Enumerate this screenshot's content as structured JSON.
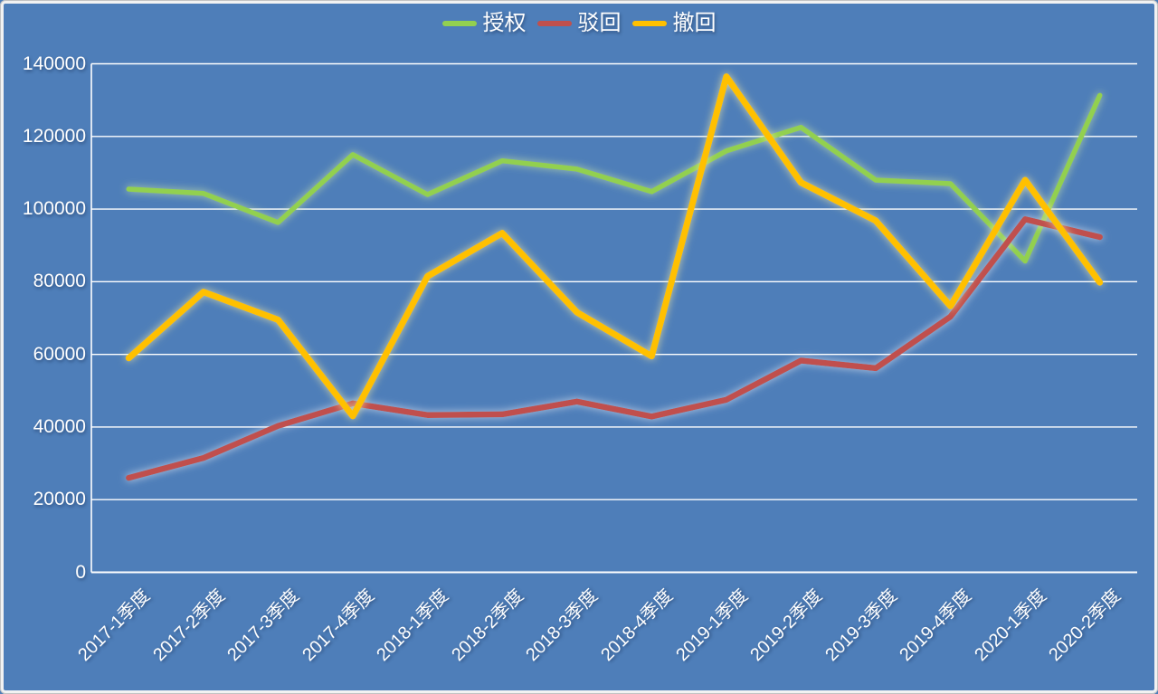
{
  "frame": {
    "background": "#4E7EB9",
    "inner_border": "#F2F2F2",
    "outer_border": "#C2C2C2"
  },
  "chart_data": {
    "type": "line",
    "title": "",
    "categories": [
      "2017-1季度",
      "2017-2季度",
      "2017-3季度",
      "2017-4季度",
      "2018-1季度",
      "2018-2季度",
      "2018-3季度",
      "2018-4季度",
      "2019-1季度",
      "2019-2季度",
      "2019-3季度",
      "2019-4季度",
      "2020-1季度",
      "2020-2季度"
    ],
    "series": [
      {
        "key": "granted",
        "name": "授权",
        "color": "#92D050",
        "glow_color": "#CDE8A6",
        "values": [
          105500,
          104300,
          96300,
          115000,
          104000,
          113300,
          111000,
          104800,
          116000,
          122500,
          108000,
          107000,
          85700,
          131300
        ]
      },
      {
        "key": "rejected",
        "name": "驳回",
        "color": "#C0504D",
        "glow_color": "#DCE4F0",
        "values": [
          26000,
          31500,
          40300,
          46500,
          43300,
          43500,
          47000,
          42900,
          47500,
          58300,
          56200,
          70400,
          97200,
          92300
        ]
      },
      {
        "key": "withdrawn",
        "name": "撤回",
        "color": "#FFC000",
        "glow_color": "#EFE6A0",
        "values": [
          59000,
          77200,
          69500,
          43000,
          81500,
          93400,
          71600,
          59500,
          136500,
          107300,
          96800,
          73300,
          108000,
          79800
        ]
      }
    ],
    "ylim": [
      0,
      140000
    ],
    "ytick_step": 20000,
    "yticks": [
      "0",
      "20000",
      "40000",
      "60000",
      "80000",
      "100000",
      "120000",
      "140000"
    ],
    "legend_position": "top-center",
    "grid": true,
    "gridline_color": "#FFFFFF",
    "axis_text_color": "#FFFFFF"
  }
}
